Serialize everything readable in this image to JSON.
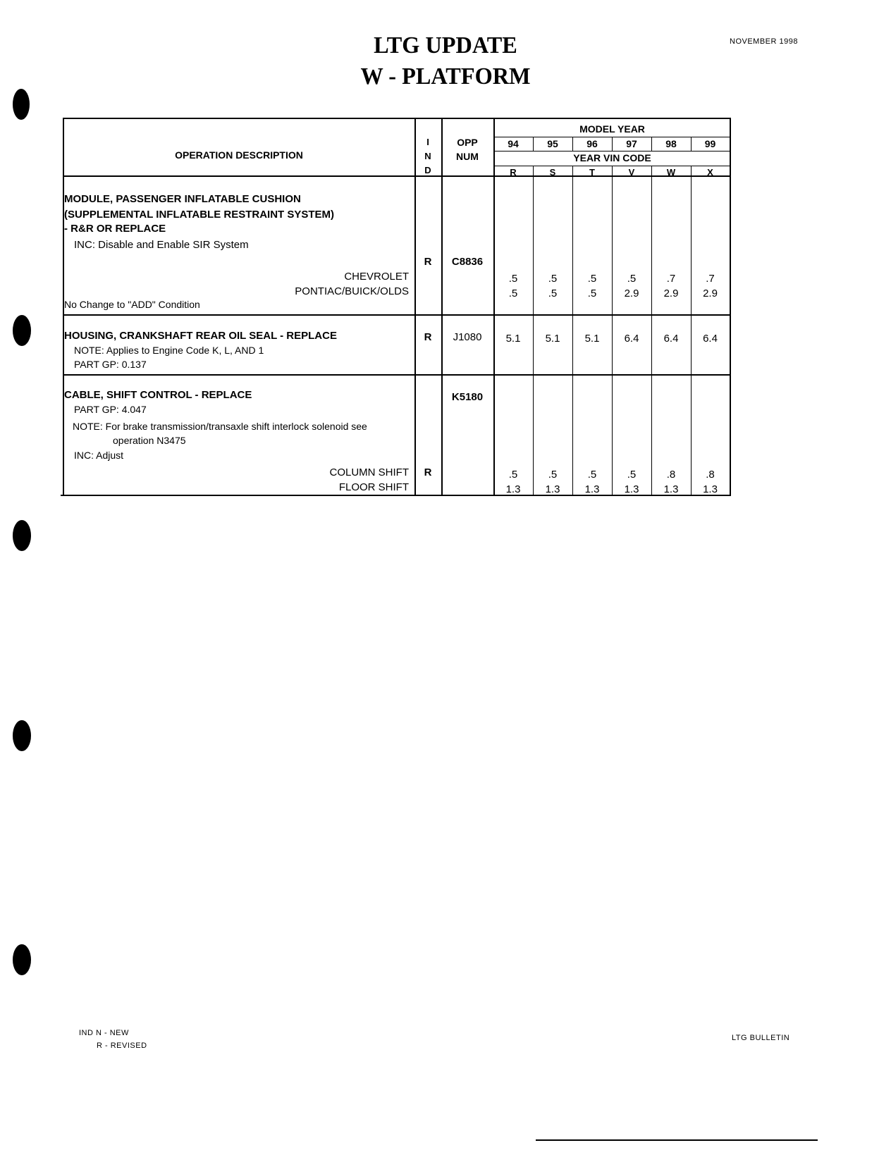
{
  "header": {
    "title_line1": "LTG UPDATE",
    "title_line2": "W - PLATFORM",
    "date": "NOVEMBER 1998"
  },
  "table": {
    "col_description": "OPERATION DESCRIPTION",
    "col_ind": [
      "I",
      "N",
      "D"
    ],
    "col_opp": [
      "OPP",
      "NUM"
    ],
    "model_year_label": "MODEL YEAR",
    "years": [
      "94",
      "95",
      "96",
      "97",
      "98",
      "99"
    ],
    "vin_code_label": "YEAR VIN CODE",
    "vin_codes": [
      "R",
      "S",
      "T",
      "V",
      "W",
      "X"
    ],
    "rows": [
      {
        "lines": [
          "MODULE, PASSENGER INFLATABLE CUSHION",
          "(SUPPLEMENTAL INFLATABLE RESTRAINT SYSTEM)",
          " - R&R OR REPLACE",
          "INC: Disable and Enable SIR System"
        ],
        "ind": "R",
        "opp": "C8836",
        "variants": [
          {
            "label": "CHEVROLET",
            "values": [
              ".5",
              ".5",
              ".5",
              ".5",
              ".7",
              ".7"
            ]
          },
          {
            "label": "PONTIAC/BUICK/OLDS",
            "values": [
              ".5",
              ".5",
              ".5",
              "2.9",
              "2.9",
              "2.9"
            ]
          }
        ],
        "footer": "No Change to \"ADD\" Condition"
      },
      {
        "lines": [
          "HOUSING, CRANKSHAFT REAR OIL SEAL - REPLACE",
          "NOTE: Applies to Engine Code K, L, AND 1",
          "PART GP: 0.137"
        ],
        "ind": "R",
        "opp": "J1080",
        "values": [
          "5.1",
          "5.1",
          "5.1",
          "6.4",
          "6.4",
          "6.4"
        ]
      },
      {
        "lines": [
          "CABLE, SHIFT CONTROL - REPLACE",
          "PART GP: 4.047",
          "NOTE: For brake transmission/transaxle shift interlock solenoid see",
          "operation N3475",
          "INC: Adjust"
        ],
        "ind": "R",
        "opp": "K5180",
        "variants": [
          {
            "label": "COLUMN SHIFT",
            "values": [
              ".5",
              ".5",
              ".5",
              ".5",
              ".8",
              ".8"
            ]
          },
          {
            "label": "FLOOR SHIFT",
            "values": [
              "1.3",
              "1.3",
              "1.3",
              "1.3",
              "1.3",
              "1.3"
            ]
          }
        ]
      }
    ]
  },
  "footer": {
    "legend_line1": "IND  N - NEW",
    "legend_line2": "R - REVISED",
    "bulletin": "LTG BULLETIN"
  }
}
